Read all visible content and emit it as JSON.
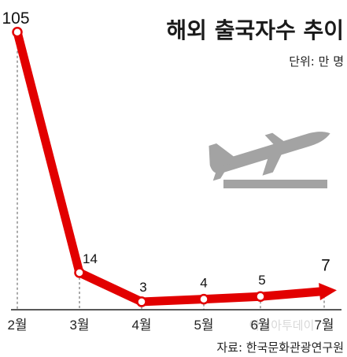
{
  "chart_data": {
    "type": "line",
    "title": "해외 출국자수 추이",
    "unit": "단위: 만 명",
    "source": "자료: 한국문화관광연구원",
    "categories": [
      "2월",
      "3월",
      "4월",
      "5월",
      "6월",
      "7월"
    ],
    "values": [
      105,
      14,
      3,
      4,
      5,
      7
    ],
    "ylim": [
      0,
      110
    ],
    "grid": false,
    "legend": "none",
    "line_color": "#e20000",
    "marker_fill": "#ffffff",
    "last_point_style": "arrow",
    "icon": "airplane-takeoff-icon",
    "icon_color": "#a3a3a3",
    "watermark": "아시아투데이"
  }
}
